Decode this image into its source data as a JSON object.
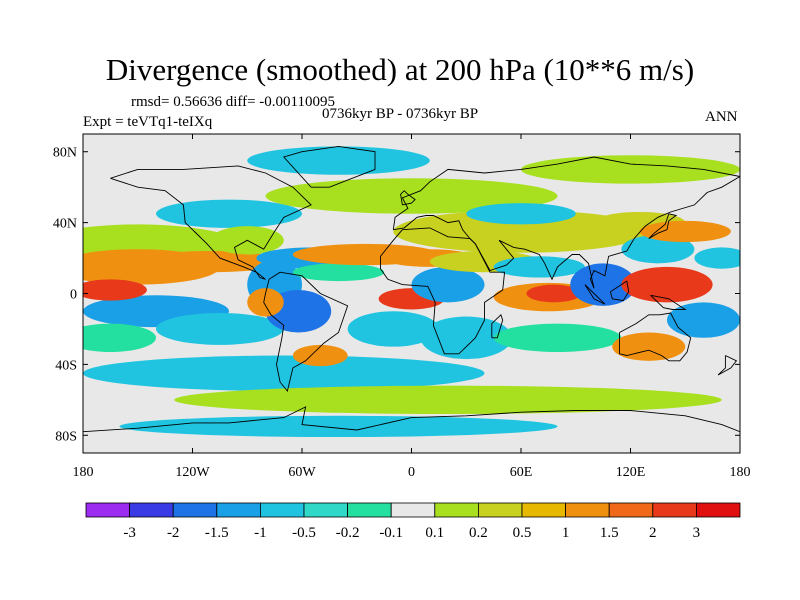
{
  "title": "Divergence (smoothed) at 200 hPa (10**6 m/s)",
  "stats_text": "rmsd= 0.56636 diff= -0.00110095",
  "experiment_text": "Expt = teVTq1-teIXq",
  "period_text": "0736kyr BP - 0736kyr BP",
  "season_text": "ANN",
  "lat_ticks": [
    "80N",
    "40N",
    "0",
    "40S",
    "80S"
  ],
  "lon_ticks": [
    "180",
    "120W",
    "60W",
    "0",
    "60E",
    "120E",
    "180"
  ],
  "colorbar": {
    "labels": [
      "-3",
      "-2",
      "-1.5",
      "-1",
      "-0.5",
      "-0.2",
      "-0.1",
      "0.1",
      "0.2",
      "0.5",
      "1",
      "1.5",
      "2",
      "3"
    ],
    "colors": [
      "#9b2cf0",
      "#3b3be6",
      "#1e74e6",
      "#1aa0e6",
      "#20c4e0",
      "#30d8c8",
      "#24e0a0",
      "#e8e8e8",
      "#a8e020",
      "#c8d020",
      "#e6b800",
      "#f09010",
      "#f06818",
      "#e83a1a",
      "#e01010"
    ]
  },
  "map_colors": {
    "strong_pos": "#e83a1a",
    "pos": "#f09010",
    "mild_pos": "#c8d020",
    "weak_pos": "#a8e020",
    "neutral": "#e8e8e8",
    "weak_neg": "#24e0a0",
    "mild_neg": "#20c4e0",
    "neg": "#1aa0e6",
    "strong_neg": "#1e74e6",
    "coast": "#000000"
  }
}
